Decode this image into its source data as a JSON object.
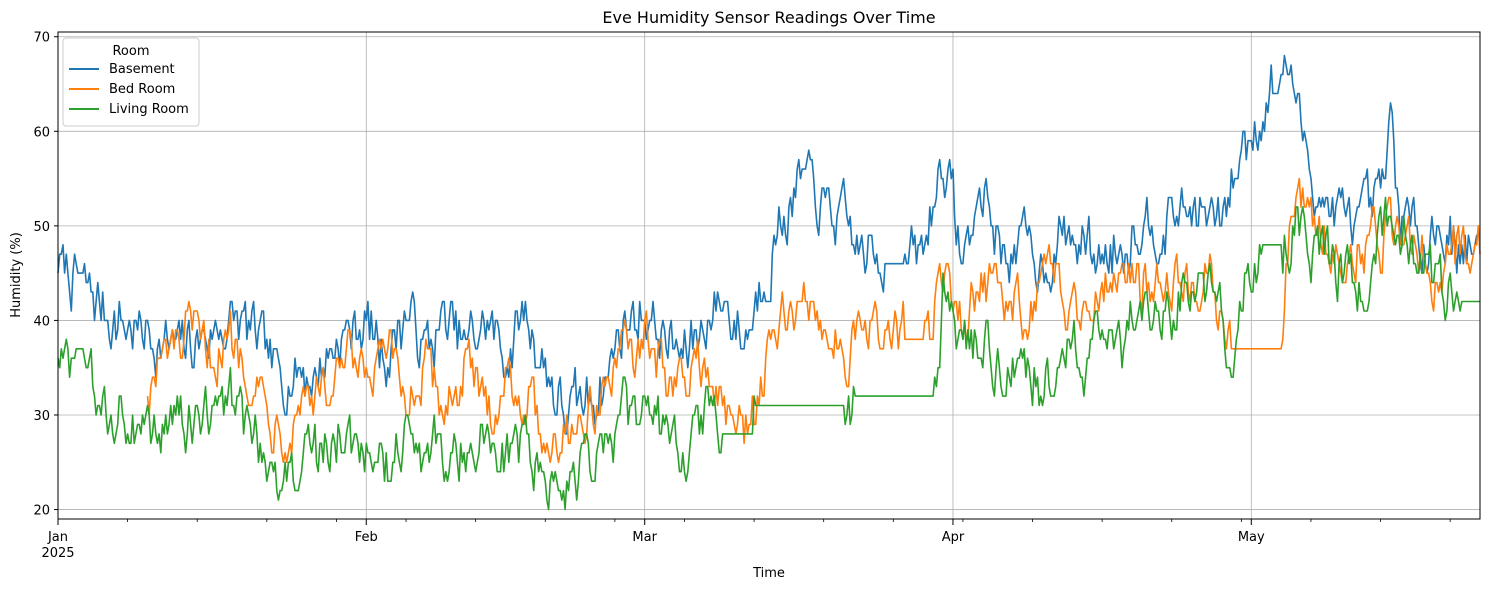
{
  "chart_data": {
    "type": "line",
    "title": "Eve Humidity Sensor Readings Over Time",
    "xlabel": "Time",
    "ylabel": "Humidity (%)",
    "x_tick_labels": [
      "Jan",
      "Feb",
      "Mar",
      "Apr",
      "May"
    ],
    "x_tick_dates": [
      "2025-01-01",
      "2025-02-01",
      "2025-03-01",
      "2025-04-01",
      "2025-05-01"
    ],
    "x_year_label": "2025",
    "xlim": [
      "2025-01-01",
      "2025-05-24"
    ],
    "y_ticks": [
      20,
      30,
      40,
      50,
      60,
      70
    ],
    "ylim": [
      19,
      70.5
    ],
    "grid": true,
    "legend": {
      "title": "Room",
      "placement": "top-left"
    },
    "series": [
      {
        "name": "Basement",
        "color": "#1f77b4",
        "points": [
          [
            "2025-01-01",
            46
          ],
          [
            "2025-01-03",
            44
          ],
          [
            "2025-01-05",
            42
          ],
          [
            "2025-01-07",
            40
          ],
          [
            "2025-01-09",
            39
          ],
          [
            "2025-01-11",
            38
          ],
          [
            "2025-01-13",
            37
          ],
          [
            "2025-01-15",
            38
          ],
          [
            "2025-01-17",
            39
          ],
          [
            "2025-01-19",
            40
          ],
          [
            "2025-01-21",
            38
          ],
          [
            "2025-01-23",
            34
          ],
          [
            "2025-01-25",
            35
          ],
          [
            "2025-01-27",
            34
          ],
          [
            "2025-01-29",
            38
          ],
          [
            "2025-02-01",
            40
          ],
          [
            "2025-02-03",
            36
          ],
          [
            "2025-02-05",
            41
          ],
          [
            "2025-02-07",
            37
          ],
          [
            "2025-02-09",
            40
          ],
          [
            "2025-02-11",
            37
          ],
          [
            "2025-02-13",
            40
          ],
          [
            "2025-02-15",
            36
          ],
          [
            "2025-02-17",
            41
          ],
          [
            "2025-02-19",
            35
          ],
          [
            "2025-02-21",
            30
          ],
          [
            "2025-02-23",
            31
          ],
          [
            "2025-02-25",
            34
          ],
          [
            "2025-02-27",
            40
          ],
          [
            "2025-03-01",
            41
          ],
          [
            "2025-03-03",
            38
          ],
          [
            "2025-03-05",
            36
          ],
          [
            "2025-03-07",
            40
          ],
          [
            "2025-03-09",
            42
          ],
          [
            "2025-03-11",
            38
          ],
          [
            "2025-03-13",
            45
          ],
          [
            "2025-03-15",
            51
          ],
          [
            "2025-03-17",
            55
          ],
          [
            "2025-03-19",
            52
          ],
          [
            "2025-03-21",
            50
          ],
          [
            "2025-03-23",
            47
          ],
          [
            "2025-03-25",
            46
          ],
          [
            "2025-03-27",
            46
          ],
          [
            "2025-03-29",
            47
          ],
          [
            "2025-03-31",
            58
          ],
          [
            "2025-04-02",
            46
          ],
          [
            "2025-04-04",
            54
          ],
          [
            "2025-04-06",
            47
          ],
          [
            "2025-04-08",
            48
          ],
          [
            "2025-04-10",
            46
          ],
          [
            "2025-04-12",
            49
          ],
          [
            "2025-04-14",
            48
          ],
          [
            "2025-04-16",
            47
          ],
          [
            "2025-04-18",
            48
          ],
          [
            "2025-04-20",
            51
          ],
          [
            "2025-04-22",
            50
          ],
          [
            "2025-04-24",
            52
          ],
          [
            "2025-04-26",
            51
          ],
          [
            "2025-04-28",
            50
          ],
          [
            "2025-04-30",
            58
          ],
          [
            "2025-05-02",
            62
          ],
          [
            "2025-05-04",
            66
          ],
          [
            "2025-05-05",
            67
          ],
          [
            "2025-05-06",
            60
          ],
          [
            "2025-05-08",
            53
          ],
          [
            "2025-05-10",
            51
          ],
          [
            "2025-05-12",
            50
          ],
          [
            "2025-05-14",
            52
          ],
          [
            "2025-05-15",
            60
          ],
          [
            "2025-05-16",
            51
          ],
          [
            "2025-05-18",
            49
          ],
          [
            "2025-05-20",
            50
          ],
          [
            "2025-05-22",
            48
          ],
          [
            "2025-05-24",
            47
          ]
        ]
      },
      {
        "name": "Bed Room",
        "color": "#ff7f0e",
        "points": [
          [
            "2025-01-10",
            33
          ],
          [
            "2025-01-12",
            36
          ],
          [
            "2025-01-14",
            38
          ],
          [
            "2025-01-16",
            36
          ],
          [
            "2025-01-18",
            38
          ],
          [
            "2025-01-20",
            36
          ],
          [
            "2025-01-22",
            31
          ],
          [
            "2025-01-24",
            29
          ],
          [
            "2025-01-26",
            33
          ],
          [
            "2025-01-28",
            32
          ],
          [
            "2025-01-30",
            35
          ],
          [
            "2025-02-01",
            33
          ],
          [
            "2025-02-03",
            36
          ],
          [
            "2025-02-05",
            32
          ],
          [
            "2025-02-07",
            34
          ],
          [
            "2025-02-09",
            31
          ],
          [
            "2025-02-11",
            35
          ],
          [
            "2025-02-13",
            30
          ],
          [
            "2025-02-15",
            34
          ],
          [
            "2025-02-17",
            32
          ],
          [
            "2025-02-19",
            28
          ],
          [
            "2025-02-21",
            29
          ],
          [
            "2025-02-23",
            30
          ],
          [
            "2025-02-25",
            33
          ],
          [
            "2025-02-27",
            36
          ],
          [
            "2025-03-01",
            38
          ],
          [
            "2025-03-03",
            34
          ],
          [
            "2025-03-05",
            33
          ],
          [
            "2025-03-07",
            36
          ],
          [
            "2025-03-09",
            30
          ],
          [
            "2025-03-11",
            28
          ],
          [
            "2025-03-13",
            35
          ],
          [
            "2025-03-15",
            40
          ],
          [
            "2025-03-17",
            42
          ],
          [
            "2025-03-19",
            40
          ],
          [
            "2025-03-21",
            37
          ],
          [
            "2025-03-23",
            38
          ],
          [
            "2025-03-25",
            39
          ],
          [
            "2025-03-27",
            38
          ],
          [
            "2025-03-29",
            38
          ],
          [
            "2025-03-31",
            44
          ],
          [
            "2025-04-02",
            40
          ],
          [
            "2025-04-04",
            45
          ],
          [
            "2025-04-06",
            42
          ],
          [
            "2025-04-08",
            41
          ],
          [
            "2025-04-10",
            44
          ],
          [
            "2025-04-12",
            43
          ],
          [
            "2025-04-14",
            41
          ],
          [
            "2025-04-16",
            45
          ],
          [
            "2025-04-18",
            46
          ],
          [
            "2025-04-20",
            43
          ],
          [
            "2025-04-22",
            46
          ],
          [
            "2025-04-24",
            44
          ],
          [
            "2025-04-26",
            45
          ],
          [
            "2025-04-28",
            41
          ],
          [
            "2025-04-29",
            37
          ],
          [
            "2025-05-03",
            37
          ],
          [
            "2025-05-04",
            37
          ],
          [
            "2025-05-05",
            53
          ],
          [
            "2025-05-07",
            50
          ],
          [
            "2025-05-09",
            48
          ],
          [
            "2025-05-11",
            47
          ],
          [
            "2025-05-13",
            48
          ],
          [
            "2025-05-15",
            50
          ],
          [
            "2025-05-17",
            49
          ],
          [
            "2025-05-19",
            46
          ],
          [
            "2025-05-21",
            47
          ],
          [
            "2025-05-24",
            48
          ]
        ]
      },
      {
        "name": "Living Room",
        "color": "#2ca02c",
        "points": [
          [
            "2025-01-01",
            37
          ],
          [
            "2025-01-03",
            34
          ],
          [
            "2025-01-05",
            31
          ],
          [
            "2025-01-07",
            30
          ],
          [
            "2025-01-09",
            29
          ],
          [
            "2025-01-11",
            28
          ],
          [
            "2025-01-13",
            29
          ],
          [
            "2025-01-15",
            30
          ],
          [
            "2025-01-17",
            29
          ],
          [
            "2025-01-19",
            32
          ],
          [
            "2025-01-21",
            26
          ],
          [
            "2025-01-23",
            23
          ],
          [
            "2025-01-25",
            25
          ],
          [
            "2025-01-27",
            26
          ],
          [
            "2025-01-29",
            27
          ],
          [
            "2025-02-01",
            28
          ],
          [
            "2025-02-03",
            25
          ],
          [
            "2025-02-05",
            29
          ],
          [
            "2025-02-07",
            26
          ],
          [
            "2025-02-09",
            27
          ],
          [
            "2025-02-11",
            25
          ],
          [
            "2025-02-13",
            28
          ],
          [
            "2025-02-15",
            25
          ],
          [
            "2025-02-17",
            28
          ],
          [
            "2025-02-19",
            23
          ],
          [
            "2025-02-21",
            22
          ],
          [
            "2025-02-23",
            24
          ],
          [
            "2025-02-25",
            27
          ],
          [
            "2025-02-27",
            30
          ],
          [
            "2025-03-01",
            31
          ],
          [
            "2025-03-03",
            28
          ],
          [
            "2025-03-05",
            25
          ],
          [
            "2025-03-07",
            30
          ],
          [
            "2025-03-09",
            28
          ],
          [
            "2025-03-11",
            28
          ],
          [
            "2025-03-12",
            31
          ],
          [
            "2025-03-21",
            31
          ],
          [
            "2025-03-22",
            32
          ],
          [
            "2025-03-30",
            32
          ],
          [
            "2025-03-31",
            43
          ],
          [
            "2025-04-02",
            36
          ],
          [
            "2025-04-04",
            38
          ],
          [
            "2025-04-06",
            34
          ],
          [
            "2025-04-08",
            37
          ],
          [
            "2025-04-10",
            33
          ],
          [
            "2025-04-12",
            38
          ],
          [
            "2025-04-14",
            36
          ],
          [
            "2025-04-16",
            39
          ],
          [
            "2025-04-18",
            37
          ],
          [
            "2025-04-20",
            42
          ],
          [
            "2025-04-22",
            40
          ],
          [
            "2025-04-24",
            43
          ],
          [
            "2025-04-26",
            45
          ],
          [
            "2025-04-28",
            40
          ],
          [
            "2025-04-29",
            36
          ],
          [
            "2025-04-30",
            42
          ],
          [
            "2025-05-01",
            45
          ],
          [
            "2025-05-02",
            48
          ],
          [
            "2025-05-04",
            48
          ],
          [
            "2025-05-06",
            50
          ],
          [
            "2025-05-08",
            47
          ],
          [
            "2025-05-10",
            45
          ],
          [
            "2025-05-12",
            44
          ],
          [
            "2025-05-14",
            49
          ],
          [
            "2025-05-16",
            50
          ],
          [
            "2025-05-18",
            48
          ],
          [
            "2025-05-20",
            43
          ],
          [
            "2025-05-22",
            42
          ],
          [
            "2025-05-24",
            42
          ]
        ]
      }
    ]
  }
}
